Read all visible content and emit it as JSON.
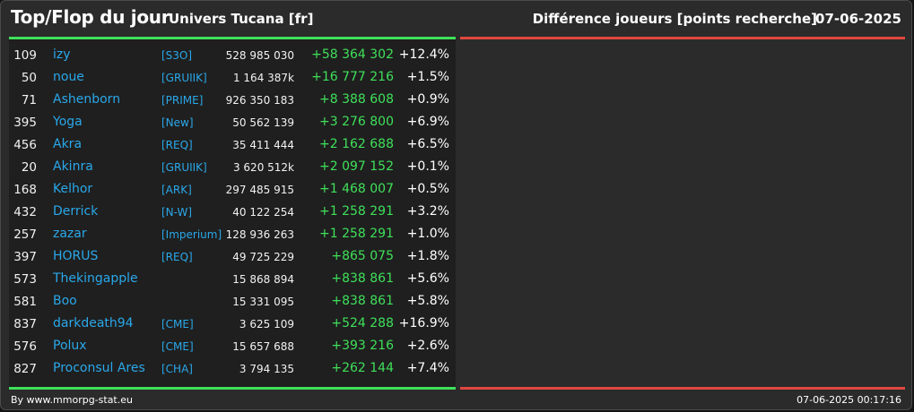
{
  "header": {
    "title": "Top/Flop du jour",
    "universe": "Univers Tucana [fr]",
    "right_title": "Différence joueurs [points recherche]",
    "date": "07-06-2025"
  },
  "colors": {
    "top_accent": "#3fe05a",
    "flop_accent": "#e0483f",
    "link": "#2aa8ea"
  },
  "rows": [
    {
      "rank": "109",
      "name": "izy",
      "alliance": "[S3O]",
      "points": "528 985 030",
      "diff": "+58 364 302",
      "pct": "+12.4%"
    },
    {
      "rank": "50",
      "name": "noue",
      "alliance": "[GRUIIK]",
      "points": "1 164 387k",
      "diff": "+16 777 216",
      "pct": "+1.5%"
    },
    {
      "rank": "71",
      "name": "Ashenborn",
      "alliance": "[PRIME]",
      "points": "926 350 183",
      "diff": "+8 388 608",
      "pct": "+0.9%"
    },
    {
      "rank": "395",
      "name": "Yoga",
      "alliance": "[New]",
      "points": "50 562 139",
      "diff": "+3 276 800",
      "pct": "+6.9%"
    },
    {
      "rank": "456",
      "name": "Akra",
      "alliance": "[REQ]",
      "points": "35 411 444",
      "diff": "+2 162 688",
      "pct": "+6.5%"
    },
    {
      "rank": "20",
      "name": "Akinra",
      "alliance": "[GRUIIK]",
      "points": "3 620 512k",
      "diff": "+2 097 152",
      "pct": "+0.1%"
    },
    {
      "rank": "168",
      "name": "Kelhor",
      "alliance": "[ARK]",
      "points": "297 485 915",
      "diff": "+1 468 007",
      "pct": "+0.5%"
    },
    {
      "rank": "432",
      "name": "Derrick",
      "alliance": "[N-W]",
      "points": "40 122 254",
      "diff": "+1 258 291",
      "pct": "+3.2%"
    },
    {
      "rank": "257",
      "name": "zazar",
      "alliance": "[Imperium]",
      "points": "128 936 263",
      "diff": "+1 258 291",
      "pct": "+1.0%"
    },
    {
      "rank": "397",
      "name": "HORUS",
      "alliance": "[REQ]",
      "points": "49 725 229",
      "diff": "+865 075",
      "pct": "+1.8%"
    },
    {
      "rank": "573",
      "name": "Thekingapple",
      "alliance": "",
      "points": "15 868 894",
      "diff": "+838 861",
      "pct": "+5.6%"
    },
    {
      "rank": "581",
      "name": "Boo",
      "alliance": "",
      "points": "15 331 095",
      "diff": "+838 861",
      "pct": "+5.8%"
    },
    {
      "rank": "837",
      "name": "darkdeath94",
      "alliance": "[CME]",
      "points": "3 625 109",
      "diff": "+524 288",
      "pct": "+16.9%"
    },
    {
      "rank": "576",
      "name": "Polux",
      "alliance": "[CME]",
      "points": "15 657 688",
      "diff": "+393 216",
      "pct": "+2.6%"
    },
    {
      "rank": "827",
      "name": "Proconsul Ares",
      "alliance": "[CHA]",
      "points": "3 794 135",
      "diff": "+262 144",
      "pct": "+7.4%"
    }
  ],
  "footer": {
    "credit": "By www.mmorpg-stat.eu",
    "timestamp": "07-06-2025 00:17:16"
  }
}
